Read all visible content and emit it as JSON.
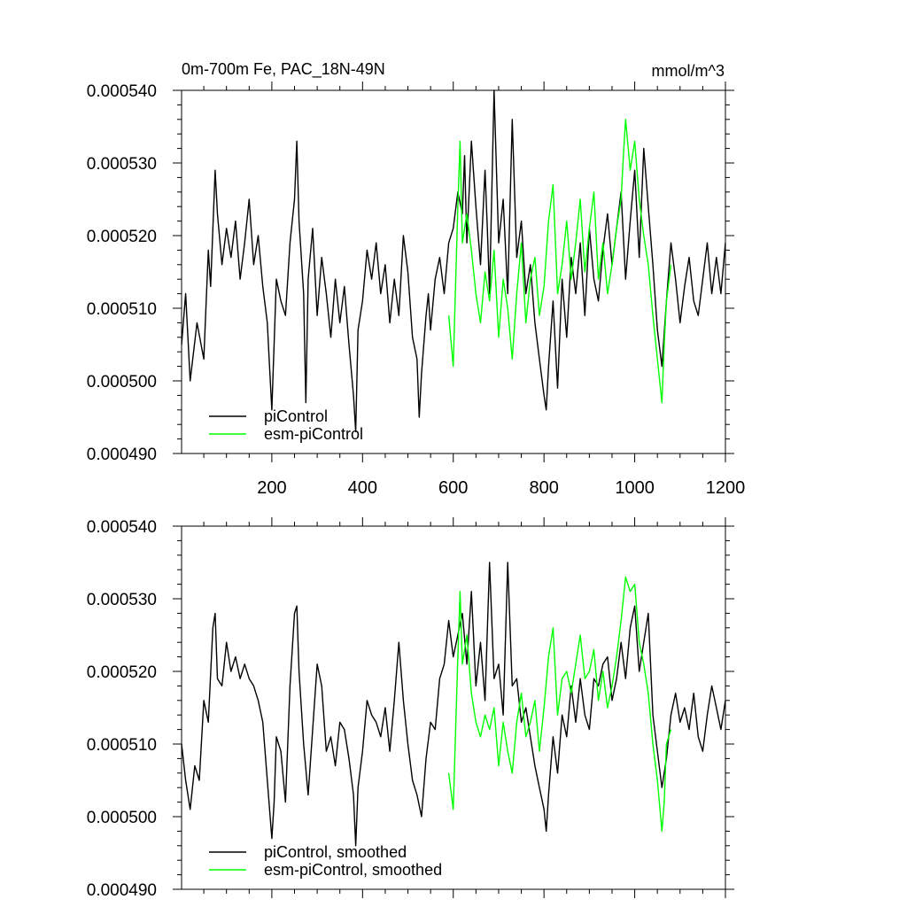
{
  "figure": {
    "title": "0m-700m Fe, PAC_18N-49N",
    "units": "mmol/m^3"
  },
  "colors": {
    "picontrol": "#000000",
    "esm_picontrol": "#00ff00",
    "axis": "#000000",
    "background": "#ffffff"
  },
  "chart_data": [
    {
      "type": "line",
      "panel": "raw",
      "title": "0m-700m Fe, PAC_18N-49N",
      "units_label": "mmol/m^3",
      "xlim": [
        1,
        1200
      ],
      "ylim": [
        0.00049,
        0.00054
      ],
      "xticks": [
        200,
        400,
        600,
        800,
        1000,
        1200
      ],
      "xtick_labels": [
        "200",
        "400",
        "600",
        "800",
        "1000",
        "1200"
      ],
      "yticks": [
        0.00049,
        0.0005,
        0.00051,
        0.00052,
        0.00053,
        0.00054
      ],
      "ytick_labels": [
        "0.000490",
        "0.000500",
        "0.000510",
        "0.000520",
        "0.000530",
        "0.000540"
      ],
      "legend": [
        "piControl",
        "esm-piControl"
      ],
      "legend_position": "bottom-left",
      "series": [
        {
          "name": "piControl",
          "color": "#000000",
          "x": [
            1,
            10,
            20,
            35,
            50,
            60,
            65,
            75,
            80,
            90,
            100,
            110,
            120,
            130,
            140,
            150,
            160,
            170,
            180,
            190,
            195,
            200,
            210,
            220,
            230,
            240,
            250,
            255,
            260,
            270,
            275,
            280,
            290,
            300,
            310,
            320,
            330,
            340,
            350,
            360,
            370,
            380,
            385,
            390,
            400,
            410,
            420,
            430,
            440,
            450,
            460,
            470,
            480,
            490,
            500,
            510,
            520,
            525,
            530,
            540,
            545,
            550,
            560,
            570,
            580,
            590,
            600,
            610,
            620,
            625,
            630,
            640,
            650,
            660,
            670,
            675,
            680,
            690,
            700,
            710,
            720,
            730,
            740,
            750,
            760,
            770,
            780,
            790,
            800,
            805,
            810,
            820,
            830,
            840,
            850,
            860,
            870,
            880,
            890,
            900,
            910,
            920,
            930,
            940,
            950,
            960,
            970,
            980,
            990,
            1000,
            1010,
            1020,
            1030,
            1040,
            1050,
            1060,
            1070,
            1080,
            1090,
            1100,
            1110,
            1120,
            1130,
            1140,
            1150,
            1160,
            1170,
            1180,
            1190,
            1200
          ],
          "values": [
            0.000505,
            0.000512,
            0.0005,
            0.000508,
            0.000503,
            0.000518,
            0.000513,
            0.000529,
            0.000523,
            0.000516,
            0.000521,
            0.000517,
            0.000522,
            0.000514,
            0.000519,
            0.000525,
            0.000516,
            0.00052,
            0.000513,
            0.000508,
            0.000502,
            0.000496,
            0.000514,
            0.000511,
            0.000509,
            0.000519,
            0.000525,
            0.000533,
            0.000522,
            0.000512,
            0.000497,
            0.000514,
            0.000521,
            0.000509,
            0.000517,
            0.000512,
            0.000506,
            0.000514,
            0.000508,
            0.000513,
            0.000505,
            0.000498,
            0.000493,
            0.000507,
            0.000511,
            0.000518,
            0.000514,
            0.000519,
            0.000512,
            0.000516,
            0.000508,
            0.000514,
            0.000509,
            0.00052,
            0.000515,
            0.000506,
            0.000503,
            0.000495,
            0.000501,
            0.000509,
            0.000512,
            0.000507,
            0.000514,
            0.000517,
            0.000512,
            0.000519,
            0.000521,
            0.000526,
            0.000523,
            0.000531,
            0.000519,
            0.000533,
            0.000524,
            0.000516,
            0.000529,
            0.000521,
            0.000512,
            0.00054,
            0.000519,
            0.000525,
            0.000512,
            0.000536,
            0.000517,
            0.000522,
            0.000512,
            0.000516,
            0.000508,
            0.000503,
            0.000498,
            0.000496,
            0.000502,
            0.000511,
            0.000499,
            0.000514,
            0.000506,
            0.000517,
            0.000512,
            0.000519,
            0.000509,
            0.000521,
            0.000514,
            0.000511,
            0.000518,
            0.000523,
            0.000516,
            0.000521,
            0.000526,
            0.000514,
            0.000522,
            0.000529,
            0.000517,
            0.000532,
            0.000524,
            0.000516,
            0.000507,
            0.000502,
            0.000511,
            0.000519,
            0.000514,
            0.000508,
            0.000513,
            0.000517,
            0.000511,
            0.000509,
            0.000514,
            0.000519,
            0.000512,
            0.000517,
            0.000512,
            0.000519
          ]
        },
        {
          "name": "esm-piControl",
          "color": "#00ff00",
          "x": [
            590,
            600,
            610,
            615,
            620,
            630,
            640,
            650,
            660,
            670,
            680,
            690,
            700,
            710,
            720,
            730,
            740,
            750,
            760,
            770,
            780,
            790,
            800,
            810,
            820,
            830,
            840,
            850,
            860,
            870,
            880,
            890,
            900,
            910,
            920,
            930,
            940,
            950,
            960,
            970,
            975,
            980,
            990,
            1000,
            1010,
            1020,
            1030,
            1040,
            1050,
            1060,
            1065,
            1070,
            1080
          ],
          "values": [
            0.000509,
            0.000502,
            0.000524,
            0.000533,
            0.000519,
            0.000523,
            0.000518,
            0.000512,
            0.000508,
            0.000515,
            0.000511,
            0.000518,
            0.000506,
            0.000514,
            0.00051,
            0.000503,
            0.000512,
            0.000519,
            0.000508,
            0.000514,
            0.000517,
            0.000509,
            0.000513,
            0.000522,
            0.000527,
            0.000512,
            0.000516,
            0.000522,
            0.000514,
            0.000519,
            0.000525,
            0.000515,
            0.000521,
            0.000526,
            0.000514,
            0.000519,
            0.000512,
            0.000516,
            0.000521,
            0.000525,
            0.000531,
            0.000536,
            0.000529,
            0.000533,
            0.000525,
            0.00052,
            0.000516,
            0.000509,
            0.000503,
            0.000497,
            0.000505,
            0.000511,
            0.000516
          ]
        }
      ]
    },
    {
      "type": "line",
      "panel": "smoothed",
      "xlim": [
        1,
        1200
      ],
      "ylim": [
        0.00049,
        0.00054
      ],
      "xticks": [
        200,
        400,
        600,
        800,
        1000,
        1200
      ],
      "yticks": [
        0.00049,
        0.0005,
        0.00051,
        0.00052,
        0.00053,
        0.00054
      ],
      "ytick_labels": [
        "0.000490",
        "0.000500",
        "0.000510",
        "0.000520",
        "0.000530",
        "0.000540"
      ],
      "legend": [
        "piControl, smoothed",
        "esm-piControl, smoothed"
      ],
      "legend_position": "bottom-left",
      "series": [
        {
          "name": "piControl, smoothed",
          "color": "#000000",
          "x": [
            1,
            10,
            20,
            30,
            40,
            50,
            60,
            70,
            75,
            80,
            90,
            100,
            110,
            120,
            130,
            140,
            150,
            160,
            170,
            180,
            190,
            200,
            205,
            210,
            220,
            230,
            240,
            250,
            255,
            260,
            270,
            280,
            290,
            300,
            310,
            320,
            330,
            340,
            350,
            360,
            370,
            380,
            385,
            390,
            400,
            410,
            420,
            430,
            440,
            450,
            460,
            470,
            480,
            490,
            500,
            510,
            520,
            530,
            540,
            550,
            560,
            570,
            580,
            590,
            600,
            610,
            620,
            630,
            640,
            650,
            660,
            670,
            680,
            690,
            700,
            710,
            720,
            730,
            740,
            750,
            760,
            770,
            780,
            790,
            800,
            805,
            810,
            820,
            830,
            840,
            850,
            860,
            870,
            880,
            890,
            900,
            910,
            920,
            930,
            940,
            950,
            960,
            970,
            980,
            990,
            1000,
            1010,
            1020,
            1030,
            1040,
            1050,
            1060,
            1070,
            1080,
            1090,
            1100,
            1110,
            1120,
            1130,
            1140,
            1150,
            1160,
            1170,
            1180,
            1190,
            1200
          ],
          "values": [
            0.00051,
            0.000505,
            0.000501,
            0.000507,
            0.000505,
            0.000516,
            0.000513,
            0.000526,
            0.000528,
            0.000519,
            0.000518,
            0.000524,
            0.00052,
            0.000522,
            0.000519,
            0.000521,
            0.000519,
            0.000518,
            0.000516,
            0.000513,
            0.000505,
            0.000497,
            0.000502,
            0.000511,
            0.000509,
            0.000502,
            0.000518,
            0.000528,
            0.000529,
            0.00052,
            0.00051,
            0.000503,
            0.000512,
            0.000521,
            0.000518,
            0.000509,
            0.000511,
            0.000507,
            0.000513,
            0.000512,
            0.000508,
            0.000503,
            0.000496,
            0.000504,
            0.000509,
            0.000516,
            0.000514,
            0.000513,
            0.000511,
            0.000515,
            0.000509,
            0.000516,
            0.000524,
            0.000516,
            0.00051,
            0.000505,
            0.000503,
            0.0005,
            0.000508,
            0.000513,
            0.000512,
            0.000519,
            0.000521,
            0.000527,
            0.000522,
            0.000525,
            0.000528,
            0.000521,
            0.000531,
            0.000518,
            0.000524,
            0.000516,
            0.000535,
            0.000519,
            0.000521,
            0.000514,
            0.000535,
            0.000518,
            0.000519,
            0.000513,
            0.000515,
            0.000511,
            0.000507,
            0.000504,
            0.000501,
            0.000498,
            0.000503,
            0.000511,
            0.000506,
            0.000514,
            0.000511,
            0.000518,
            0.000513,
            0.000519,
            0.000514,
            0.000512,
            0.000519,
            0.000518,
            0.000521,
            0.000522,
            0.000516,
            0.000519,
            0.000524,
            0.000519,
            0.000526,
            0.000529,
            0.00052,
            0.000524,
            0.000528,
            0.000514,
            0.000509,
            0.000504,
            0.000508,
            0.000514,
            0.000517,
            0.000513,
            0.000515,
            0.000512,
            0.000517,
            0.000511,
            0.000509,
            0.000514,
            0.000518,
            0.000515,
            0.000512,
            0.000516
          ]
        },
        {
          "name": "esm-piControl, smoothed",
          "color": "#00ff00",
          "x": [
            590,
            600,
            610,
            615,
            620,
            630,
            640,
            650,
            660,
            670,
            680,
            690,
            700,
            710,
            720,
            730,
            740,
            750,
            760,
            770,
            780,
            790,
            800,
            810,
            820,
            830,
            840,
            850,
            860,
            870,
            880,
            890,
            900,
            910,
            920,
            930,
            940,
            950,
            960,
            970,
            980,
            990,
            1000,
            1010,
            1020,
            1030,
            1040,
            1050,
            1060,
            1065,
            1070,
            1080
          ],
          "values": [
            0.000506,
            0.000501,
            0.000522,
            0.000531,
            0.000521,
            0.000525,
            0.000517,
            0.000513,
            0.000511,
            0.000514,
            0.000512,
            0.000515,
            0.000507,
            0.000513,
            0.000509,
            0.000506,
            0.000513,
            0.000517,
            0.000511,
            0.000513,
            0.000516,
            0.000509,
            0.000515,
            0.000522,
            0.000526,
            0.000514,
            0.000519,
            0.00052,
            0.000517,
            0.000521,
            0.000525,
            0.000519,
            0.00052,
            0.000523,
            0.000516,
            0.00052,
            0.000515,
            0.000518,
            0.000522,
            0.000527,
            0.000533,
            0.000531,
            0.000532,
            0.000524,
            0.000521,
            0.000517,
            0.00051,
            0.000505,
            0.000498,
            0.000502,
            0.00051,
            0.000512
          ]
        }
      ]
    }
  ]
}
